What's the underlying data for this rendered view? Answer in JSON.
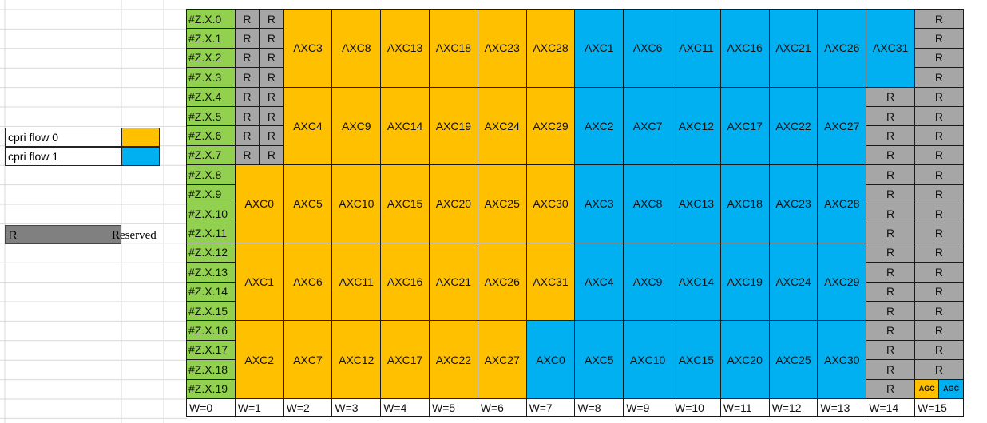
{
  "colors": {
    "green": "#92d050",
    "orange": "#ffc000",
    "blue": "#00b0f0",
    "gray": "#a6a6a6",
    "reserved_dark": "#808080",
    "gridline": "#d9d9d9"
  },
  "legend": {
    "flow0_label": "cpri flow 0",
    "flow1_label": "cpri flow 1",
    "reserved_code": "R",
    "reserved_label": "Reserved"
  },
  "rows": [
    "#Z.X.0",
    "#Z.X.1",
    "#Z.X.2",
    "#Z.X.3",
    "#Z.X.4",
    "#Z.X.5",
    "#Z.X.6",
    "#Z.X.7",
    "#Z.X.8",
    "#Z.X.9",
    "#Z.X.10",
    "#Z.X.11",
    "#Z.X.12",
    "#Z.X.13",
    "#Z.X.14",
    "#Z.X.15",
    "#Z.X.16",
    "#Z.X.17",
    "#Z.X.18",
    "#Z.X.19"
  ],
  "word_labels": [
    "W=0",
    "W=1",
    "W=2",
    "W=3",
    "W=4",
    "W=5",
    "W=6",
    "W=7",
    "W=8",
    "W=9",
    "W=10",
    "W=11",
    "W=12",
    "W=13",
    "W=14",
    "W=15"
  ],
  "blocks": [
    {
      "c": 1,
      "r": 0,
      "cs": 0.5,
      "rs": 1,
      "text": "R",
      "color": "gray"
    },
    {
      "c": 1.5,
      "r": 0,
      "cs": 0.5,
      "rs": 1,
      "text": "R",
      "color": "gray"
    },
    {
      "c": 1,
      "r": 1,
      "cs": 0.5,
      "rs": 1,
      "text": "R",
      "color": "gray"
    },
    {
      "c": 1.5,
      "r": 1,
      "cs": 0.5,
      "rs": 1,
      "text": "R",
      "color": "gray"
    },
    {
      "c": 1,
      "r": 2,
      "cs": 0.5,
      "rs": 1,
      "text": "R",
      "color": "gray"
    },
    {
      "c": 1.5,
      "r": 2,
      "cs": 0.5,
      "rs": 1,
      "text": "R",
      "color": "gray"
    },
    {
      "c": 1,
      "r": 3,
      "cs": 0.5,
      "rs": 1,
      "text": "R",
      "color": "gray"
    },
    {
      "c": 1.5,
      "r": 3,
      "cs": 0.5,
      "rs": 1,
      "text": "R",
      "color": "gray"
    },
    {
      "c": 1,
      "r": 4,
      "cs": 0.5,
      "rs": 1,
      "text": "R",
      "color": "gray"
    },
    {
      "c": 1.5,
      "r": 4,
      "cs": 0.5,
      "rs": 1,
      "text": "R",
      "color": "gray"
    },
    {
      "c": 1,
      "r": 5,
      "cs": 0.5,
      "rs": 1,
      "text": "R",
      "color": "gray"
    },
    {
      "c": 1.5,
      "r": 5,
      "cs": 0.5,
      "rs": 1,
      "text": "R",
      "color": "gray"
    },
    {
      "c": 1,
      "r": 6,
      "cs": 0.5,
      "rs": 1,
      "text": "R",
      "color": "gray"
    },
    {
      "c": 1.5,
      "r": 6,
      "cs": 0.5,
      "rs": 1,
      "text": "R",
      "color": "gray"
    },
    {
      "c": 1,
      "r": 7,
      "cs": 0.5,
      "rs": 1,
      "text": "R",
      "color": "gray"
    },
    {
      "c": 1.5,
      "r": 7,
      "cs": 0.5,
      "rs": 1,
      "text": "R",
      "color": "gray"
    },
    {
      "c": 2,
      "r": 0,
      "cs": 1,
      "rs": 4,
      "text": "AXC3",
      "color": "orange"
    },
    {
      "c": 3,
      "r": 0,
      "cs": 1,
      "rs": 4,
      "text": "AXC8",
      "color": "orange"
    },
    {
      "c": 4,
      "r": 0,
      "cs": 1,
      "rs": 4,
      "text": "AXC13",
      "color": "orange"
    },
    {
      "c": 5,
      "r": 0,
      "cs": 1,
      "rs": 4,
      "text": "AXC18",
      "color": "orange"
    },
    {
      "c": 6,
      "r": 0,
      "cs": 1,
      "rs": 4,
      "text": "AXC23",
      "color": "orange"
    },
    {
      "c": 7,
      "r": 0,
      "cs": 1,
      "rs": 4,
      "text": "AXC28",
      "color": "orange"
    },
    {
      "c": 8,
      "r": 0,
      "cs": 1,
      "rs": 4,
      "text": "AXC1",
      "color": "blue"
    },
    {
      "c": 9,
      "r": 0,
      "cs": 1,
      "rs": 4,
      "text": "AXC6",
      "color": "blue"
    },
    {
      "c": 10,
      "r": 0,
      "cs": 1,
      "rs": 4,
      "text": "AXC11",
      "color": "blue"
    },
    {
      "c": 11,
      "r": 0,
      "cs": 1,
      "rs": 4,
      "text": "AXC16",
      "color": "blue"
    },
    {
      "c": 12,
      "r": 0,
      "cs": 1,
      "rs": 4,
      "text": "AXC21",
      "color": "blue"
    },
    {
      "c": 13,
      "r": 0,
      "cs": 1,
      "rs": 4,
      "text": "AXC26",
      "color": "blue"
    },
    {
      "c": 14,
      "r": 0,
      "cs": 1,
      "rs": 4,
      "text": "AXC31",
      "color": "blue"
    },
    {
      "c": 2,
      "r": 4,
      "cs": 1,
      "rs": 4,
      "text": "AXC4",
      "color": "orange"
    },
    {
      "c": 3,
      "r": 4,
      "cs": 1,
      "rs": 4,
      "text": "AXC9",
      "color": "orange"
    },
    {
      "c": 4,
      "r": 4,
      "cs": 1,
      "rs": 4,
      "text": "AXC14",
      "color": "orange"
    },
    {
      "c": 5,
      "r": 4,
      "cs": 1,
      "rs": 4,
      "text": "AXC19",
      "color": "orange"
    },
    {
      "c": 6,
      "r": 4,
      "cs": 1,
      "rs": 4,
      "text": "AXC24",
      "color": "orange"
    },
    {
      "c": 7,
      "r": 4,
      "cs": 1,
      "rs": 4,
      "text": "AXC29",
      "color": "orange"
    },
    {
      "c": 8,
      "r": 4,
      "cs": 1,
      "rs": 4,
      "text": "AXC2",
      "color": "blue"
    },
    {
      "c": 9,
      "r": 4,
      "cs": 1,
      "rs": 4,
      "text": "AXC7",
      "color": "blue"
    },
    {
      "c": 10,
      "r": 4,
      "cs": 1,
      "rs": 4,
      "text": "AXC12",
      "color": "blue"
    },
    {
      "c": 11,
      "r": 4,
      "cs": 1,
      "rs": 4,
      "text": "AXC17",
      "color": "blue"
    },
    {
      "c": 12,
      "r": 4,
      "cs": 1,
      "rs": 4,
      "text": "AXC22",
      "color": "blue"
    },
    {
      "c": 13,
      "r": 4,
      "cs": 1,
      "rs": 4,
      "text": "AXC27",
      "color": "blue"
    },
    {
      "c": 1,
      "r": 8,
      "cs": 1,
      "rs": 4,
      "text": "AXC0",
      "color": "orange"
    },
    {
      "c": 2,
      "r": 8,
      "cs": 1,
      "rs": 4,
      "text": "AXC5",
      "color": "orange"
    },
    {
      "c": 3,
      "r": 8,
      "cs": 1,
      "rs": 4,
      "text": "AXC10",
      "color": "orange"
    },
    {
      "c": 4,
      "r": 8,
      "cs": 1,
      "rs": 4,
      "text": "AXC15",
      "color": "orange"
    },
    {
      "c": 5,
      "r": 8,
      "cs": 1,
      "rs": 4,
      "text": "AXC20",
      "color": "orange"
    },
    {
      "c": 6,
      "r": 8,
      "cs": 1,
      "rs": 4,
      "text": "AXC25",
      "color": "orange"
    },
    {
      "c": 7,
      "r": 8,
      "cs": 1,
      "rs": 4,
      "text": "AXC30",
      "color": "orange"
    },
    {
      "c": 8,
      "r": 8,
      "cs": 1,
      "rs": 4,
      "text": "AXC3",
      "color": "blue"
    },
    {
      "c": 9,
      "r": 8,
      "cs": 1,
      "rs": 4,
      "text": "AXC8",
      "color": "blue"
    },
    {
      "c": 10,
      "r": 8,
      "cs": 1,
      "rs": 4,
      "text": "AXC13",
      "color": "blue"
    },
    {
      "c": 11,
      "r": 8,
      "cs": 1,
      "rs": 4,
      "text": "AXC18",
      "color": "blue"
    },
    {
      "c": 12,
      "r": 8,
      "cs": 1,
      "rs": 4,
      "text": "AXC23",
      "color": "blue"
    },
    {
      "c": 13,
      "r": 8,
      "cs": 1,
      "rs": 4,
      "text": "AXC28",
      "color": "blue"
    },
    {
      "c": 1,
      "r": 12,
      "cs": 1,
      "rs": 4,
      "text": "AXC1",
      "color": "orange"
    },
    {
      "c": 2,
      "r": 12,
      "cs": 1,
      "rs": 4,
      "text": "AXC6",
      "color": "orange"
    },
    {
      "c": 3,
      "r": 12,
      "cs": 1,
      "rs": 4,
      "text": "AXC11",
      "color": "orange"
    },
    {
      "c": 4,
      "r": 12,
      "cs": 1,
      "rs": 4,
      "text": "AXC16",
      "color": "orange"
    },
    {
      "c": 5,
      "r": 12,
      "cs": 1,
      "rs": 4,
      "text": "AXC21",
      "color": "orange"
    },
    {
      "c": 6,
      "r": 12,
      "cs": 1,
      "rs": 4,
      "text": "AXC26",
      "color": "orange"
    },
    {
      "c": 7,
      "r": 12,
      "cs": 1,
      "rs": 4,
      "text": "AXC31",
      "color": "orange"
    },
    {
      "c": 8,
      "r": 12,
      "cs": 1,
      "rs": 4,
      "text": "AXC4",
      "color": "blue"
    },
    {
      "c": 9,
      "r": 12,
      "cs": 1,
      "rs": 4,
      "text": "AXC9",
      "color": "blue"
    },
    {
      "c": 10,
      "r": 12,
      "cs": 1,
      "rs": 4,
      "text": "AXC14",
      "color": "blue"
    },
    {
      "c": 11,
      "r": 12,
      "cs": 1,
      "rs": 4,
      "text": "AXC19",
      "color": "blue"
    },
    {
      "c": 12,
      "r": 12,
      "cs": 1,
      "rs": 4,
      "text": "AXC24",
      "color": "blue"
    },
    {
      "c": 13,
      "r": 12,
      "cs": 1,
      "rs": 4,
      "text": "AXC29",
      "color": "blue"
    },
    {
      "c": 1,
      "r": 16,
      "cs": 1,
      "rs": 4,
      "text": "AXC2",
      "color": "orange"
    },
    {
      "c": 2,
      "r": 16,
      "cs": 1,
      "rs": 4,
      "text": "AXC7",
      "color": "orange"
    },
    {
      "c": 3,
      "r": 16,
      "cs": 1,
      "rs": 4,
      "text": "AXC12",
      "color": "orange"
    },
    {
      "c": 4,
      "r": 16,
      "cs": 1,
      "rs": 4,
      "text": "AXC17",
      "color": "orange"
    },
    {
      "c": 5,
      "r": 16,
      "cs": 1,
      "rs": 4,
      "text": "AXC22",
      "color": "orange"
    },
    {
      "c": 6,
      "r": 16,
      "cs": 1,
      "rs": 4,
      "text": "AXC27",
      "color": "orange"
    },
    {
      "c": 7,
      "r": 16,
      "cs": 1,
      "rs": 4,
      "text": "AXC0",
      "color": "blue"
    },
    {
      "c": 8,
      "r": 16,
      "cs": 1,
      "rs": 4,
      "text": "AXC5",
      "color": "blue"
    },
    {
      "c": 9,
      "r": 16,
      "cs": 1,
      "rs": 4,
      "text": "AXC10",
      "color": "blue"
    },
    {
      "c": 10,
      "r": 16,
      "cs": 1,
      "rs": 4,
      "text": "AXC15",
      "color": "blue"
    },
    {
      "c": 11,
      "r": 16,
      "cs": 1,
      "rs": 4,
      "text": "AXC20",
      "color": "blue"
    },
    {
      "c": 12,
      "r": 16,
      "cs": 1,
      "rs": 4,
      "text": "AXC25",
      "color": "blue"
    },
    {
      "c": 13,
      "r": 16,
      "cs": 1,
      "rs": 4,
      "text": "AXC30",
      "color": "blue"
    },
    {
      "c": 14,
      "r": 4,
      "cs": 1,
      "rs": 1,
      "text": "R",
      "color": "gray"
    },
    {
      "c": 14,
      "r": 5,
      "cs": 1,
      "rs": 1,
      "text": "R",
      "color": "gray"
    },
    {
      "c": 14,
      "r": 6,
      "cs": 1,
      "rs": 1,
      "text": "R",
      "color": "gray"
    },
    {
      "c": 14,
      "r": 7,
      "cs": 1,
      "rs": 1,
      "text": "R",
      "color": "gray"
    },
    {
      "c": 14,
      "r": 8,
      "cs": 1,
      "rs": 1,
      "text": "R",
      "color": "gray"
    },
    {
      "c": 14,
      "r": 9,
      "cs": 1,
      "rs": 1,
      "text": "R",
      "color": "gray"
    },
    {
      "c": 14,
      "r": 10,
      "cs": 1,
      "rs": 1,
      "text": "R",
      "color": "gray"
    },
    {
      "c": 14,
      "r": 11,
      "cs": 1,
      "rs": 1,
      "text": "R",
      "color": "gray"
    },
    {
      "c": 14,
      "r": 12,
      "cs": 1,
      "rs": 1,
      "text": "R",
      "color": "gray"
    },
    {
      "c": 14,
      "r": 13,
      "cs": 1,
      "rs": 1,
      "text": "R",
      "color": "gray"
    },
    {
      "c": 14,
      "r": 14,
      "cs": 1,
      "rs": 1,
      "text": "R",
      "color": "gray"
    },
    {
      "c": 14,
      "r": 15,
      "cs": 1,
      "rs": 1,
      "text": "R",
      "color": "gray"
    },
    {
      "c": 14,
      "r": 16,
      "cs": 1,
      "rs": 1,
      "text": "R",
      "color": "gray"
    },
    {
      "c": 14,
      "r": 17,
      "cs": 1,
      "rs": 1,
      "text": "R",
      "color": "gray"
    },
    {
      "c": 14,
      "r": 18,
      "cs": 1,
      "rs": 1,
      "text": "R",
      "color": "gray"
    },
    {
      "c": 14,
      "r": 19,
      "cs": 1,
      "rs": 1,
      "text": "R",
      "color": "gray"
    },
    {
      "c": 15,
      "r": 0,
      "cs": 1,
      "rs": 1,
      "text": "R",
      "color": "gray"
    },
    {
      "c": 15,
      "r": 1,
      "cs": 1,
      "rs": 1,
      "text": "R",
      "color": "gray"
    },
    {
      "c": 15,
      "r": 2,
      "cs": 1,
      "rs": 1,
      "text": "R",
      "color": "gray"
    },
    {
      "c": 15,
      "r": 3,
      "cs": 1,
      "rs": 1,
      "text": "R",
      "color": "gray"
    },
    {
      "c": 15,
      "r": 4,
      "cs": 1,
      "rs": 1,
      "text": "R",
      "color": "gray"
    },
    {
      "c": 15,
      "r": 5,
      "cs": 1,
      "rs": 1,
      "text": "R",
      "color": "gray"
    },
    {
      "c": 15,
      "r": 6,
      "cs": 1,
      "rs": 1,
      "text": "R",
      "color": "gray"
    },
    {
      "c": 15,
      "r": 7,
      "cs": 1,
      "rs": 1,
      "text": "R",
      "color": "gray"
    },
    {
      "c": 15,
      "r": 8,
      "cs": 1,
      "rs": 1,
      "text": "R",
      "color": "gray"
    },
    {
      "c": 15,
      "r": 9,
      "cs": 1,
      "rs": 1,
      "text": "R",
      "color": "gray"
    },
    {
      "c": 15,
      "r": 10,
      "cs": 1,
      "rs": 1,
      "text": "R",
      "color": "gray"
    },
    {
      "c": 15,
      "r": 11,
      "cs": 1,
      "rs": 1,
      "text": "R",
      "color": "gray"
    },
    {
      "c": 15,
      "r": 12,
      "cs": 1,
      "rs": 1,
      "text": "R",
      "color": "gray"
    },
    {
      "c": 15,
      "r": 13,
      "cs": 1,
      "rs": 1,
      "text": "R",
      "color": "gray"
    },
    {
      "c": 15,
      "r": 14,
      "cs": 1,
      "rs": 1,
      "text": "R",
      "color": "gray"
    },
    {
      "c": 15,
      "r": 15,
      "cs": 1,
      "rs": 1,
      "text": "R",
      "color": "gray"
    },
    {
      "c": 15,
      "r": 16,
      "cs": 1,
      "rs": 1,
      "text": "R",
      "color": "gray"
    },
    {
      "c": 15,
      "r": 17,
      "cs": 1,
      "rs": 1,
      "text": "R",
      "color": "gray"
    },
    {
      "c": 15,
      "r": 18,
      "cs": 1,
      "rs": 1,
      "text": "R",
      "color": "gray"
    },
    {
      "c": 15,
      "r": 19,
      "cs": 0.5,
      "rs": 1,
      "text": "AGC",
      "color": "orange",
      "small": true
    },
    {
      "c": 15.5,
      "r": 19,
      "cs": 0.5,
      "rs": 1,
      "text": "AGC",
      "color": "blue",
      "small": true
    }
  ]
}
